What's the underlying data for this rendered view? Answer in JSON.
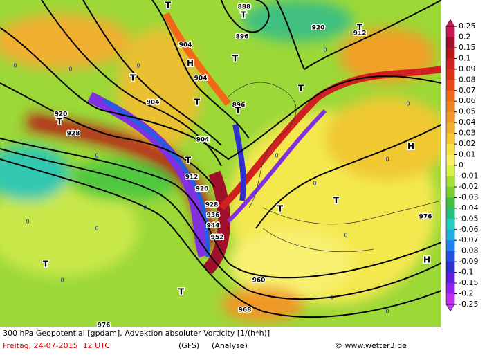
{
  "footer": {
    "description": "300 hPa Geopotential [gpdam], Advektion absoluter Vorticity [1/(h*h)]",
    "date": "Freitag, 24-07-2015  12 UTC",
    "model": "(GFS)",
    "analysis": "(Analyse)",
    "credit": "© www.wetter3.de"
  },
  "colorbar": {
    "labels": [
      "0.25",
      "0.2",
      "0.15",
      "0.1",
      "0.09",
      "0.08",
      "0.07",
      "0.06",
      "0.05",
      "0.04",
      "0.03",
      "0.02",
      "0.01",
      "0",
      "-0.01",
      "-0.02",
      "-0.03",
      "-0.04",
      "-0.05",
      "-0.06",
      "-0.07",
      "-0.08",
      "-0.09",
      "-0.1",
      "-0.15",
      "-0.2",
      "-0.25"
    ],
    "colors": [
      "#c81858",
      "#a0102a",
      "#b81818",
      "#d02020",
      "#e03018",
      "#e84818",
      "#f06818",
      "#f08020",
      "#f09828",
      "#f0b030",
      "#f8c830",
      "#f8e040",
      "#f8f060",
      "#d8f040",
      "#a8e030",
      "#78d030",
      "#40c040",
      "#20c080",
      "#20d0c0",
      "#20b0e0",
      "#2080f0",
      "#2050e0",
      "#3030d0",
      "#6020e0",
      "#9020f0",
      "#c030f0"
    ]
  },
  "map": {
    "contour_labels": [
      "888",
      "896",
      "904",
      "904",
      "904",
      "904",
      "896",
      "912",
      "920",
      "920",
      "928",
      "912",
      "920",
      "928",
      "936",
      "944",
      "952",
      "960",
      "968",
      "976",
      "976"
    ],
    "pressure_centers": [
      "T",
      "T",
      "T",
      "H",
      "T",
      "T",
      "T",
      "T",
      "T",
      "T",
      "T",
      "T",
      "T",
      "H",
      "H",
      "T",
      "T"
    ],
    "zero_labels": [
      "0",
      "0",
      "0",
      "0",
      "0",
      "0",
      "0",
      "0",
      "0",
      "0",
      "0",
      "0",
      "0",
      "0",
      "0",
      "0"
    ]
  }
}
